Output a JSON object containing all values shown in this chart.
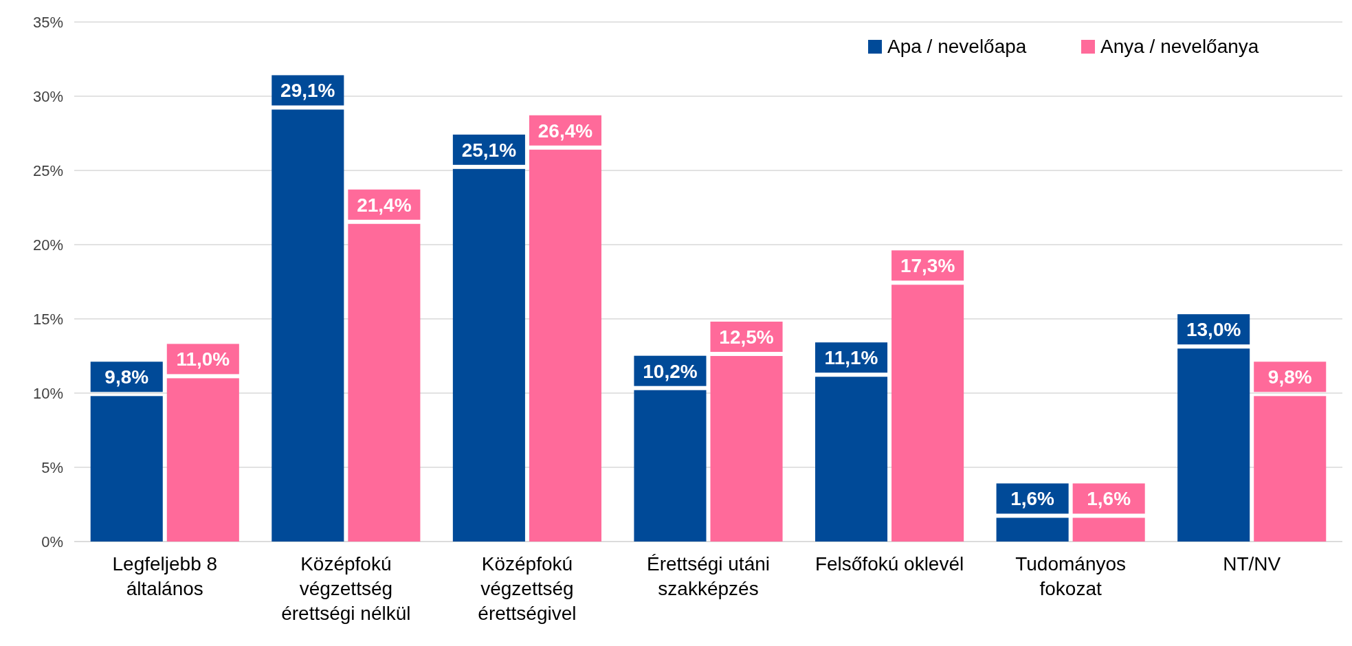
{
  "chart_data": {
    "type": "bar",
    "categories": [
      "Legfeljebb 8 általános",
      "Középfokú végzettség érettségi nélkül",
      "Középfokú végzettség érettségivel",
      "Érettségi utáni szakképzés",
      "Felsőfokú oklevél",
      "Tudományos fokozat",
      "NT/NV"
    ],
    "series": [
      {
        "name": "Apa / nevelőapa",
        "color": "#004a98",
        "values": [
          9.8,
          29.1,
          25.1,
          10.2,
          11.1,
          1.6,
          13.0
        ],
        "value_labels": [
          "9,8%",
          "29,1%",
          "25,1%",
          "10,2%",
          "11,1%",
          "1,6%",
          "13,0%"
        ]
      },
      {
        "name": "Anya / nevelőanya",
        "color": "#ff6a9a",
        "values": [
          11.0,
          21.4,
          26.4,
          12.5,
          17.3,
          1.6,
          9.8
        ],
        "value_labels": [
          "11,0%",
          "21,4%",
          "26,4%",
          "12,5%",
          "17,3%",
          "1,6%",
          "9,8%"
        ]
      }
    ],
    "ylim": [
      0,
      35
    ],
    "yticks": [
      {
        "value": 0,
        "label": "0%"
      },
      {
        "value": 5,
        "label": "5%"
      },
      {
        "value": 10,
        "label": "10%"
      },
      {
        "value": 15,
        "label": "15%"
      },
      {
        "value": 20,
        "label": "20%"
      },
      {
        "value": 25,
        "label": "25%"
      },
      {
        "value": 30,
        "label": "30%"
      },
      {
        "value": 35,
        "label": "35%"
      }
    ],
    "grid": "y",
    "legend": "top right"
  }
}
